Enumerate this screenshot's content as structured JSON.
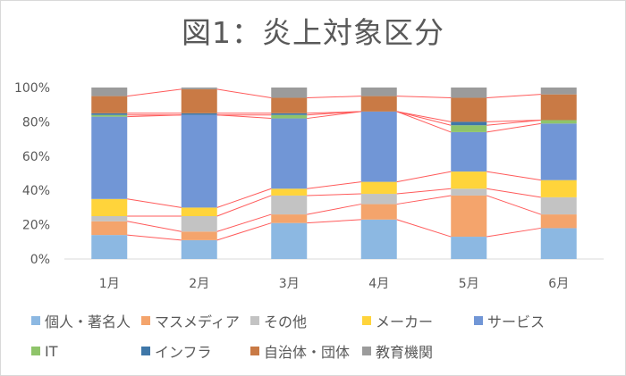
{
  "chart_data": {
    "type": "bar",
    "stacked": true,
    "percent": true,
    "title": "図1：炎上対象区分",
    "categories": [
      "1月",
      "2月",
      "3月",
      "4月",
      "5月",
      "6月"
    ],
    "yticks": [
      "0%",
      "20%",
      "40%",
      "60%",
      "80%",
      "100%"
    ],
    "ylim": [
      0,
      100
    ],
    "grid": false,
    "legend_position": "bottom",
    "series_connectors": true,
    "series": [
      {
        "name": "個人・著名人",
        "color": "#8cb8e2",
        "values": [
          14,
          11,
          21,
          23,
          13,
          18
        ]
      },
      {
        "name": "マスメディア",
        "color": "#f4a46c",
        "values": [
          8,
          5,
          5,
          9,
          24,
          8
        ]
      },
      {
        "name": "その他",
        "color": "#c3c3c3",
        "values": [
          3,
          9,
          11,
          6,
          4,
          10
        ]
      },
      {
        "name": "メーカー",
        "color": "#ffd43b",
        "values": [
          10,
          5,
          4,
          7,
          10,
          10
        ]
      },
      {
        "name": "サービス",
        "color": "#7196d6",
        "values": [
          48,
          54,
          41,
          41,
          23,
          33
        ]
      },
      {
        "name": "IT",
        "color": "#8fc46a",
        "values": [
          1,
          0,
          2,
          0,
          4,
          2
        ]
      },
      {
        "name": "インフラ",
        "color": "#3f77a8",
        "values": [
          1,
          1,
          1,
          0,
          2,
          0
        ]
      },
      {
        "name": "自治体・団体",
        "color": "#c97a45",
        "values": [
          10,
          14,
          9,
          9,
          14,
          15
        ]
      },
      {
        "name": "教育機関",
        "color": "#9b9b9b",
        "values": [
          5,
          1,
          6,
          5,
          6,
          4
        ]
      }
    ]
  }
}
